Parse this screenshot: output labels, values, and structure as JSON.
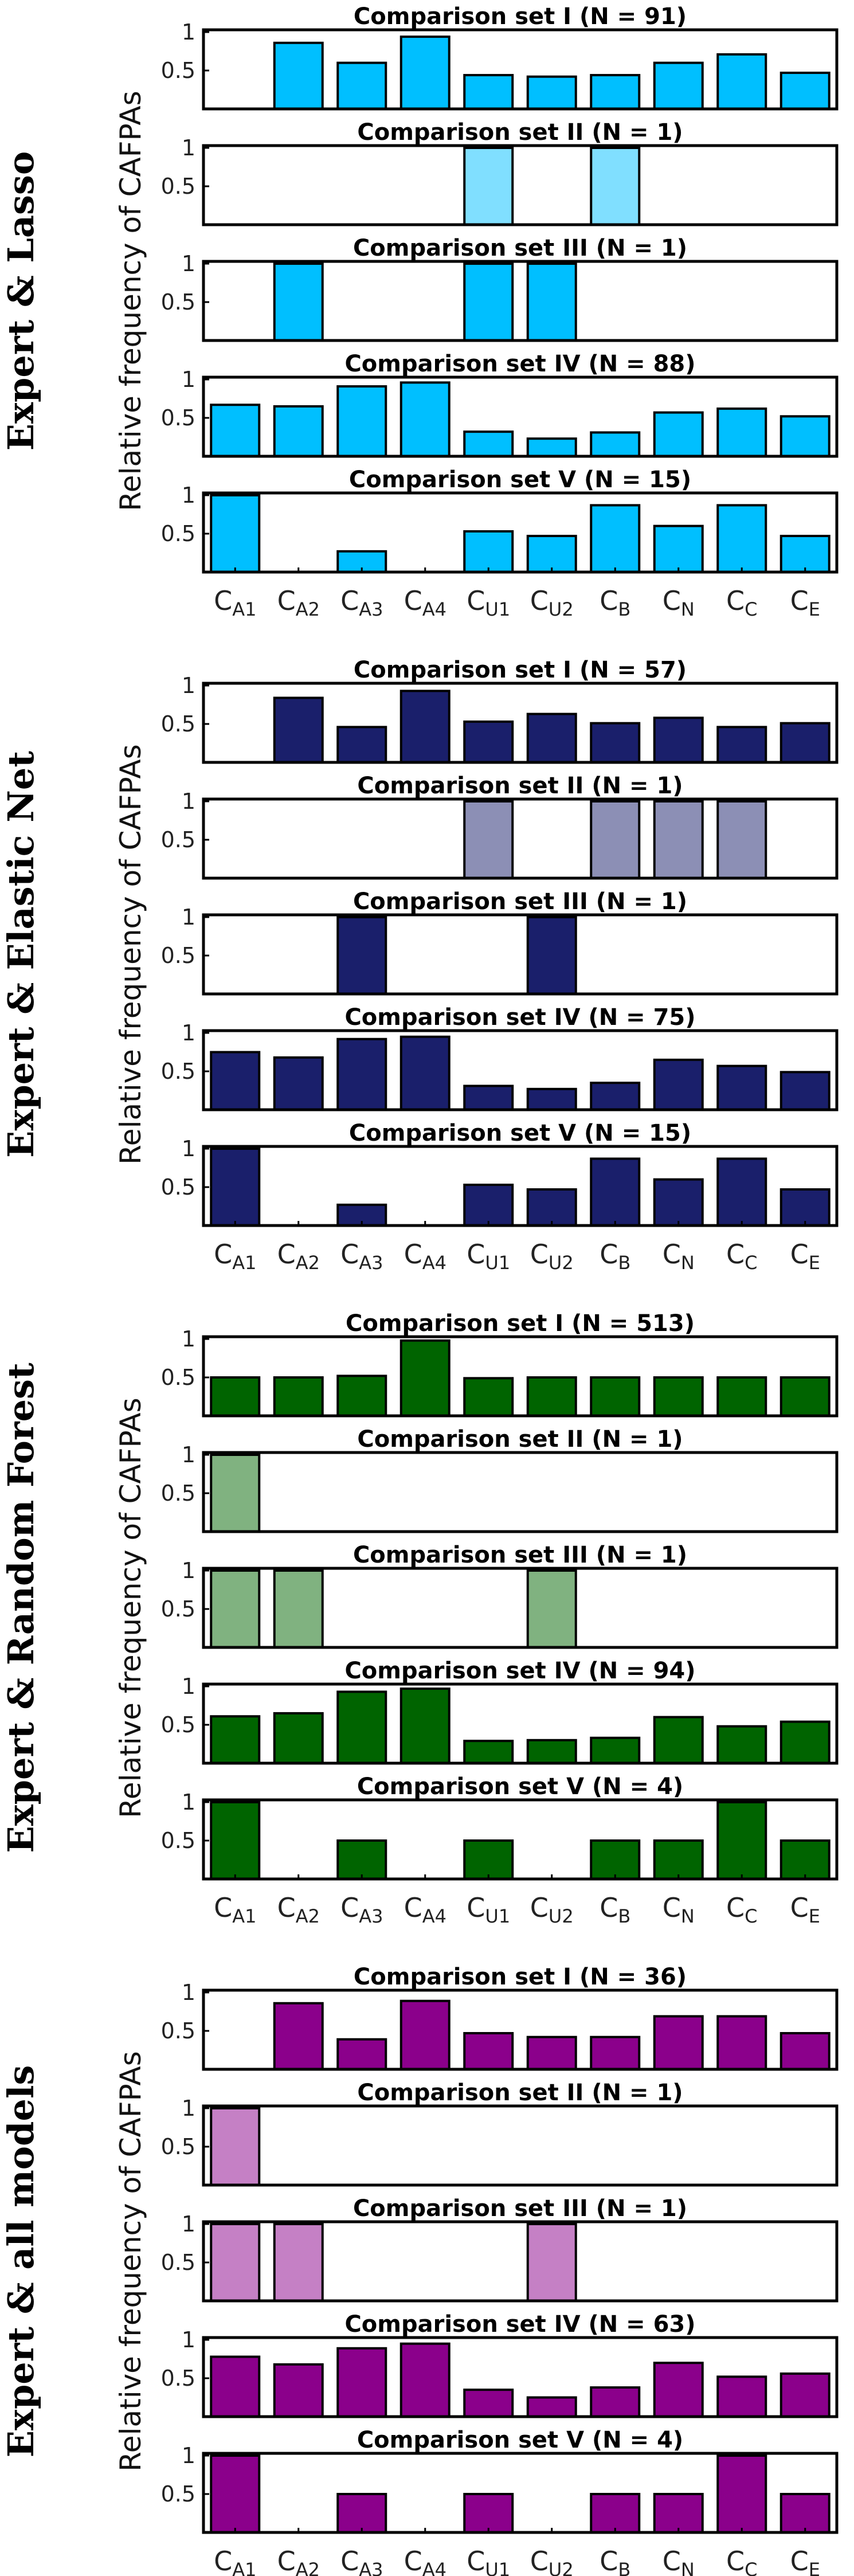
{
  "chart_data": [
    {
      "type": "bar",
      "group_label": "Expert & Lasso",
      "ylabel": "Relative frequency of CAFPAs",
      "color": "#00BFFF",
      "light_color": "#80DFFF",
      "categories": [
        "A1",
        "A2",
        "A3",
        "A4",
        "U1",
        "U2",
        "B",
        "N",
        "C",
        "E"
      ],
      "yticks": [
        "1",
        "0.5"
      ],
      "ylim": [
        0,
        1
      ],
      "panels": [
        {
          "title": "Comparison set I (N = 91)",
          "values": [
            0,
            0.86,
            0.6,
            0.94,
            0.44,
            0.42,
            0.44,
            0.6,
            0.71,
            0.47
          ],
          "light": false
        },
        {
          "title": "Comparison set II (N = 1)",
          "values": [
            0,
            0,
            0,
            0,
            1,
            0,
            1,
            0,
            0,
            0
          ],
          "light": true
        },
        {
          "title": "Comparison set III (N = 1)",
          "values": [
            0,
            1,
            0,
            0,
            1,
            1,
            0,
            0,
            0,
            0
          ],
          "light": false
        },
        {
          "title": "Comparison set IV (N = 88)",
          "values": [
            0.67,
            0.65,
            0.91,
            0.96,
            0.32,
            0.23,
            0.31,
            0.57,
            0.62,
            0.52
          ],
          "light": false
        },
        {
          "title": "Comparison set V (N = 15)",
          "values": [
            1,
            0,
            0.27,
            0,
            0.53,
            0.47,
            0.87,
            0.6,
            0.87,
            0.47
          ],
          "light": false
        }
      ]
    },
    {
      "type": "bar",
      "group_label": "Expert & Elastic Net",
      "ylabel": "Relative frequency of CAFPAs",
      "color": "#1A1F6B",
      "light_color": "#8C8FB5",
      "categories": [
        "A1",
        "A2",
        "A3",
        "A4",
        "U1",
        "U2",
        "B",
        "N",
        "C",
        "E"
      ],
      "yticks": [
        "1",
        "0.5"
      ],
      "ylim": [
        0,
        1
      ],
      "panels": [
        {
          "title": "Comparison set I (N = 57)",
          "values": [
            0,
            0.84,
            0.46,
            0.93,
            0.53,
            0.63,
            0.51,
            0.58,
            0.46,
            0.51
          ],
          "light": false
        },
        {
          "title": "Comparison set II (N = 1)",
          "values": [
            0,
            0,
            0,
            0,
            1,
            0,
            1,
            1,
            1,
            0
          ],
          "light": true
        },
        {
          "title": "Comparison set III (N = 1)",
          "values": [
            0,
            0,
            1,
            0,
            0,
            1,
            0,
            0,
            0,
            0
          ],
          "light": false
        },
        {
          "title": "Comparison set IV (N = 75)",
          "values": [
            0.75,
            0.68,
            0.92,
            0.95,
            0.31,
            0.27,
            0.35,
            0.65,
            0.57,
            0.49
          ],
          "light": false
        },
        {
          "title": "Comparison set V (N = 15)",
          "values": [
            1,
            0,
            0.27,
            0,
            0.53,
            0.47,
            0.87,
            0.6,
            0.87,
            0.47
          ],
          "light": false
        }
      ]
    },
    {
      "type": "bar",
      "group_label": "Expert & Random Forest",
      "ylabel": "Relative frequency of CAFPAs",
      "color": "#006400",
      "light_color": "#80B280",
      "categories": [
        "A1",
        "A2",
        "A3",
        "A4",
        "U1",
        "U2",
        "B",
        "N",
        "C",
        "E"
      ],
      "yticks": [
        "1",
        "0.5"
      ],
      "ylim": [
        0,
        1
      ],
      "panels": [
        {
          "title": "Comparison set I (N = 513)",
          "values": [
            0.5,
            0.5,
            0.52,
            0.98,
            0.49,
            0.5,
            0.5,
            0.5,
            0.5,
            0.5
          ],
          "light": false
        },
        {
          "title": "Comparison set II (N = 1)",
          "values": [
            1,
            0,
            0,
            0,
            0,
            0,
            0,
            0,
            0,
            0
          ],
          "light": true
        },
        {
          "title": "Comparison set III (N = 1)",
          "values": [
            1,
            1,
            0,
            0,
            0,
            1,
            0,
            0,
            0,
            0
          ],
          "light": true
        },
        {
          "title": "Comparison set IV (N = 94)",
          "values": [
            0.61,
            0.65,
            0.93,
            0.97,
            0.29,
            0.3,
            0.33,
            0.6,
            0.48,
            0.54
          ],
          "light": false
        },
        {
          "title": "Comparison set V (N = 4)",
          "values": [
            1,
            0,
            0.5,
            0,
            0.5,
            0,
            0.5,
            0.5,
            1,
            0.5
          ],
          "light": false
        }
      ]
    },
    {
      "type": "bar",
      "group_label": "Expert & all models",
      "ylabel": "Relative frequency of CAFPAs",
      "color": "#8B008B",
      "light_color": "#C580C5",
      "categories": [
        "A1",
        "A2",
        "A3",
        "A4",
        "U1",
        "U2",
        "B",
        "N",
        "C",
        "E"
      ],
      "yticks": [
        "1",
        "0.5"
      ],
      "ylim": [
        0,
        1
      ],
      "panels": [
        {
          "title": "Comparison set I (N = 36)",
          "values": [
            0,
            0.86,
            0.39,
            0.89,
            0.47,
            0.42,
            0.42,
            0.69,
            0.69,
            0.47
          ],
          "light": false
        },
        {
          "title": "Comparison set II (N = 1)",
          "values": [
            1,
            0,
            0,
            0,
            0,
            0,
            0,
            0,
            0,
            0
          ],
          "light": true
        },
        {
          "title": "Comparison set III (N = 1)",
          "values": [
            1,
            1,
            0,
            0,
            0,
            1,
            0,
            0,
            0,
            0
          ],
          "light": true
        },
        {
          "title": "Comparison set IV (N = 63)",
          "values": [
            0.78,
            0.68,
            0.89,
            0.95,
            0.35,
            0.25,
            0.38,
            0.7,
            0.52,
            0.56
          ],
          "light": false
        },
        {
          "title": "Comparison set V (N = 4)",
          "values": [
            1,
            0,
            0.5,
            0,
            0.5,
            0,
            0.5,
            0.5,
            1,
            0.5
          ],
          "light": false
        }
      ]
    }
  ]
}
